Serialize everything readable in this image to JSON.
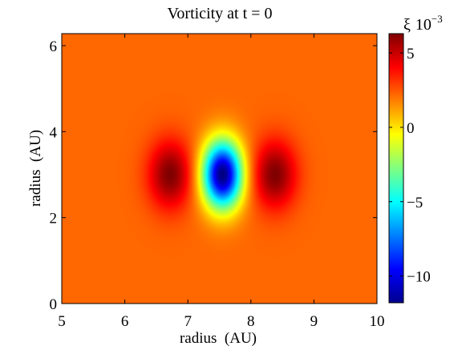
{
  "chart_data": {
    "type": "heatmap",
    "title": "Vorticity at t = 0",
    "xlabel": "radius  (AU)",
    "ylabel": "radius  (AU)",
    "xlim": [
      5,
      10
    ],
    "ylim": [
      0,
      6.28
    ],
    "x_ticks": [
      "5",
      "6",
      "7",
      "8",
      "9",
      "10"
    ],
    "y_ticks": [
      "0",
      "2",
      "4",
      "6"
    ],
    "colorbar": {
      "symbol": "ξ",
      "scale_label": "10",
      "scale_exponent": "−3",
      "range": [
        -11.8,
        6.3
      ],
      "ticks": [
        "5",
        "0",
        "−5",
        "−10"
      ],
      "colormap": "jet"
    },
    "field": {
      "description_values": "background vorticity ~ +2.2e-3; negative core at (7.55, 3.0) down to ~ -11.8e-3; positive lobes at r≈6.72 and r≈8.38 up to ~ +6.3e-3",
      "background": 2.2,
      "core": {
        "x": 7.55,
        "y": 3.0,
        "value": -11.8
      },
      "lobes": [
        {
          "x": 6.72,
          "y": 3.0,
          "value": 6.3
        },
        {
          "x": 8.38,
          "y": 3.0,
          "value": 6.3
        }
      ]
    }
  }
}
